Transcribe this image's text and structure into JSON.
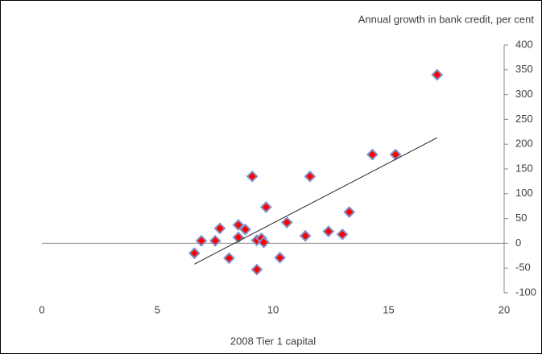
{
  "chart_data": {
    "type": "scatter",
    "y_label": "Annual growth in bank credit, per cent",
    "x_label": "2008 Tier 1 capital",
    "x": [
      6.6,
      6.9,
      7.5,
      7.7,
      8.1,
      8.5,
      8.5,
      8.8,
      9.1,
      9.3,
      9.3,
      9.5,
      9.6,
      9.7,
      10.3,
      10.6,
      11.4,
      11.6,
      12.4,
      13.0,
      13.3,
      14.3,
      15.3,
      17.1
    ],
    "values": [
      -20,
      5,
      5,
      30,
      -30,
      37,
      12,
      28,
      135,
      6,
      -53,
      10,
      2,
      73,
      -29,
      42,
      15,
      135,
      24,
      18,
      63,
      179,
      179,
      340
    ],
    "color": "#ff0000",
    "trendline": {
      "x": [
        6.6,
        17.1
      ],
      "y": [
        -42,
        213
      ]
    },
    "xlim": [
      0,
      20
    ],
    "xticks": [
      0,
      5,
      10,
      15,
      20
    ],
    "ylim": [
      -100,
      400
    ],
    "yticks": [
      -100,
      -50,
      0,
      50,
      100,
      150,
      200,
      250,
      300,
      350,
      400
    ]
  }
}
